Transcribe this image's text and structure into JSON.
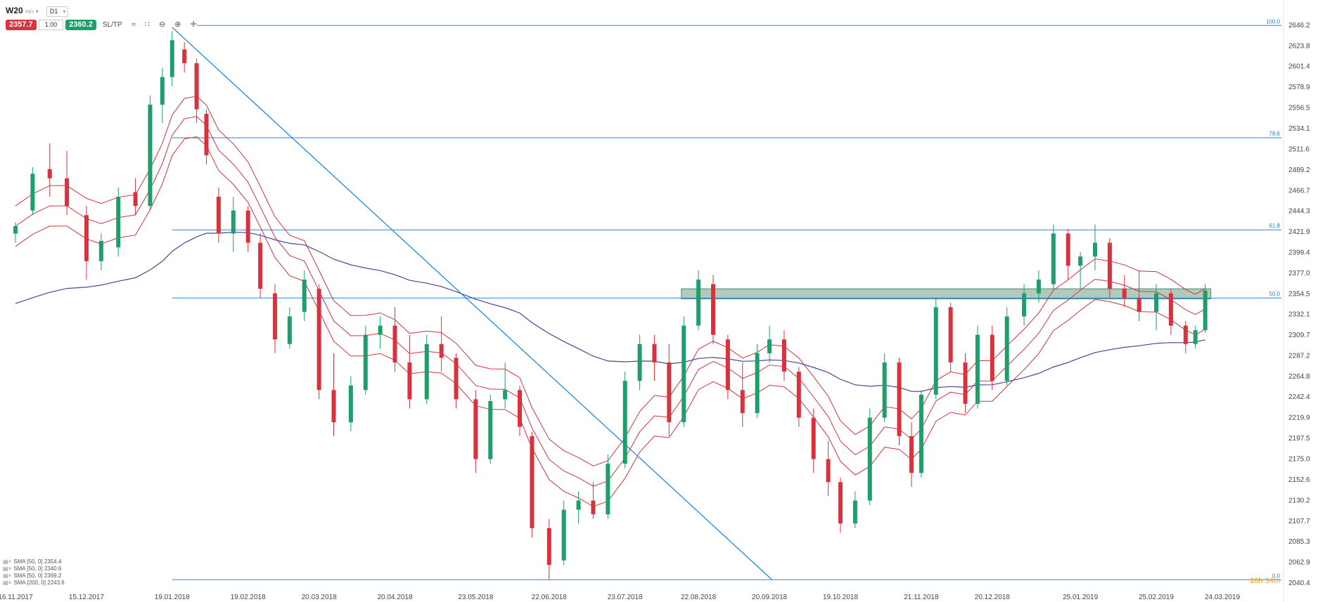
{
  "toolbar": {
    "symbol": "W20",
    "symbol_sub": "IND",
    "timeframe": "D1",
    "sell_price": "2357.7",
    "volume": "1.00",
    "buy_price": "2360.2",
    "sltp_label": "SL/TP"
  },
  "indicators": [
    {
      "label": "SMA [50, 0] 2354.4"
    },
    {
      "label": "SMA [50, 0] 2340.6"
    },
    {
      "label": "SMA [50, 0] 2369.2"
    },
    {
      "label": "SMA [200, 0] 2243.6"
    }
  ],
  "timer": "10h 34m",
  "colors": {
    "up": "#1d9e6a",
    "down": "#d8323f",
    "sma_envelope": "#d0343a",
    "sma200": "#4b4592",
    "level": "#1e88e5",
    "zone": "#4f8a6e"
  },
  "chart_data": {
    "type": "candlestick",
    "instrument": "W20",
    "timeframe": "D1",
    "ylim": [
      2040.4,
      2646.2
    ],
    "y_ticks": [
      "2646.2",
      "2623.8",
      "2601.4",
      "2578.9",
      "2556.5",
      "2534.1",
      "2511.6",
      "2489.2",
      "2466.7",
      "2444.3",
      "2421.9",
      "2399.4",
      "2377.0",
      "2354.5",
      "2332.1",
      "2309.7",
      "2287.2",
      "2264.8",
      "2242.4",
      "2219.9",
      "2197.5",
      "2175.0",
      "2152.6",
      "2130.2",
      "2107.7",
      "2085.3",
      "2062.9",
      "2040.4"
    ],
    "x_ticks": [
      "16.11.2017",
      "15.12.2017",
      "19.01.2018",
      "19.02.2018",
      "20.03.2018",
      "20.04.2018",
      "23.05.2018",
      "22.06.2018",
      "23.07.2018",
      "22.08.2018",
      "20.09.2018",
      "19.10.2018",
      "21.11.2018",
      "20.12.2018",
      "25.01.2019",
      "25.02.2019",
      "24.03.2019"
    ],
    "fib_levels": [
      {
        "label": "100.0",
        "value": 2646.0
      },
      {
        "label": "78.6",
        "value": 2524.0
      },
      {
        "label": "61.8",
        "value": 2424.0
      },
      {
        "label": "50.0",
        "value": 2350.0
      },
      {
        "label": "0.0",
        "value": 2044.0
      }
    ],
    "zone": {
      "from_date": "15.08.2018",
      "to_date": "end",
      "low": 2349.0,
      "high": 2360.0
    },
    "trendline": {
      "from": {
        "date": "19.01.2018",
        "value": 2644.0
      },
      "to": {
        "date": "21.09.2018",
        "value": 2044.0
      }
    },
    "sma": [
      {
        "label": "SMA [50, 0] 2354.4",
        "last": 2354.4
      },
      {
        "label": "SMA [50, 0] 2340.6",
        "last": 2340.6
      },
      {
        "label": "SMA [50, 0] 2369.2",
        "last": 2369.2
      },
      {
        "label": "SMA [200, 0] 2243.6",
        "last": 2243.6
      }
    ],
    "candles": [
      {
        "date": "16.11.2017",
        "open": 2420,
        "high": 2432,
        "low": 2410,
        "close": 2428
      },
      {
        "date": "23.11.2017",
        "open": 2445,
        "high": 2492,
        "low": 2440,
        "close": 2485
      },
      {
        "date": "30.11.2017",
        "open": 2490,
        "high": 2518,
        "low": 2460,
        "close": 2480
      },
      {
        "date": "07.12.2017",
        "open": 2480,
        "high": 2510,
        "low": 2440,
        "close": 2450
      },
      {
        "date": "15.12.2017",
        "open": 2440,
        "high": 2450,
        "low": 2370,
        "close": 2390
      },
      {
        "date": "21.12.2017",
        "open": 2390,
        "high": 2420,
        "low": 2380,
        "close": 2412
      },
      {
        "date": "28.12.2017",
        "open": 2405,
        "high": 2470,
        "low": 2395,
        "close": 2460
      },
      {
        "date": "04.01.2018",
        "open": 2465,
        "high": 2480,
        "low": 2440,
        "close": 2450
      },
      {
        "date": "10.01.2018",
        "open": 2450,
        "high": 2570,
        "low": 2445,
        "close": 2560
      },
      {
        "date": "15.01.2018",
        "open": 2560,
        "high": 2600,
        "low": 2540,
        "close": 2590
      },
      {
        "date": "19.01.2018",
        "open": 2590,
        "high": 2640,
        "low": 2580,
        "close": 2630
      },
      {
        "date": "24.01.2018",
        "open": 2620,
        "high": 2628,
        "low": 2595,
        "close": 2605
      },
      {
        "date": "29.01.2018",
        "open": 2605,
        "high": 2610,
        "low": 2540,
        "close": 2555
      },
      {
        "date": "02.02.2018",
        "open": 2550,
        "high": 2555,
        "low": 2495,
        "close": 2505
      },
      {
        "date": "07.02.2018",
        "open": 2460,
        "high": 2470,
        "low": 2410,
        "close": 2420
      },
      {
        "date": "13.02.2018",
        "open": 2420,
        "high": 2460,
        "low": 2400,
        "close": 2445
      },
      {
        "date": "19.02.2018",
        "open": 2445,
        "high": 2450,
        "low": 2400,
        "close": 2410
      },
      {
        "date": "24.02.2018",
        "open": 2410,
        "high": 2420,
        "low": 2350,
        "close": 2360
      },
      {
        "date": "02.03.2018",
        "open": 2355,
        "high": 2365,
        "low": 2290,
        "close": 2305
      },
      {
        "date": "08.03.2018",
        "open": 2300,
        "high": 2340,
        "low": 2295,
        "close": 2330
      },
      {
        "date": "14.03.2018",
        "open": 2335,
        "high": 2380,
        "low": 2325,
        "close": 2370
      },
      {
        "date": "20.03.2018",
        "open": 2360,
        "high": 2365,
        "low": 2240,
        "close": 2250
      },
      {
        "date": "26.03.2018",
        "open": 2250,
        "high": 2290,
        "low": 2200,
        "close": 2215
      },
      {
        "date": "02.04.2018",
        "open": 2215,
        "high": 2265,
        "low": 2205,
        "close": 2255
      },
      {
        "date": "08.04.2018",
        "open": 2250,
        "high": 2320,
        "low": 2245,
        "close": 2310
      },
      {
        "date": "14.04.2018",
        "open": 2310,
        "high": 2330,
        "low": 2295,
        "close": 2320
      },
      {
        "date": "20.04.2018",
        "open": 2320,
        "high": 2340,
        "low": 2270,
        "close": 2280
      },
      {
        "date": "26.04.2018",
        "open": 2280,
        "high": 2310,
        "low": 2230,
        "close": 2240
      },
      {
        "date": "03.05.2018",
        "open": 2240,
        "high": 2310,
        "low": 2235,
        "close": 2300
      },
      {
        "date": "09.05.2018",
        "open": 2300,
        "high": 2330,
        "low": 2270,
        "close": 2285
      },
      {
        "date": "15.05.2018",
        "open": 2285,
        "high": 2290,
        "low": 2230,
        "close": 2240
      },
      {
        "date": "23.05.2018",
        "open": 2240,
        "high": 2250,
        "low": 2160,
        "close": 2175
      },
      {
        "date": "29.05.2018",
        "open": 2175,
        "high": 2245,
        "low": 2170,
        "close": 2238
      },
      {
        "date": "04.06.2018",
        "open": 2240,
        "high": 2280,
        "low": 2230,
        "close": 2250
      },
      {
        "date": "10.06.2018",
        "open": 2250,
        "high": 2255,
        "low": 2200,
        "close": 2210
      },
      {
        "date": "15.06.2018",
        "open": 2200,
        "high": 2205,
        "low": 2090,
        "close": 2100
      },
      {
        "date": "22.06.2018",
        "open": 2100,
        "high": 2110,
        "low": 2044,
        "close": 2060
      },
      {
        "date": "28.06.2018",
        "open": 2065,
        "high": 2130,
        "low": 2060,
        "close": 2120
      },
      {
        "date": "04.07.2018",
        "open": 2120,
        "high": 2140,
        "low": 2105,
        "close": 2130
      },
      {
        "date": "10.07.2018",
        "open": 2130,
        "high": 2150,
        "low": 2110,
        "close": 2115
      },
      {
        "date": "16.07.2018",
        "open": 2115,
        "high": 2180,
        "low": 2110,
        "close": 2170
      },
      {
        "date": "23.07.2018",
        "open": 2170,
        "high": 2270,
        "low": 2165,
        "close": 2260
      },
      {
        "date": "29.07.2018",
        "open": 2260,
        "high": 2310,
        "low": 2250,
        "close": 2300
      },
      {
        "date": "04.08.2018",
        "open": 2300,
        "high": 2310,
        "low": 2260,
        "close": 2280
      },
      {
        "date": "10.08.2018",
        "open": 2280,
        "high": 2300,
        "low": 2200,
        "close": 2215
      },
      {
        "date": "16.08.2018",
        "open": 2215,
        "high": 2330,
        "low": 2210,
        "close": 2320
      },
      {
        "date": "22.08.2018",
        "open": 2320,
        "high": 2380,
        "low": 2315,
        "close": 2370
      },
      {
        "date": "28.08.2018",
        "open": 2365,
        "high": 2375,
        "low": 2300,
        "close": 2310
      },
      {
        "date": "03.09.2018",
        "open": 2305,
        "high": 2310,
        "low": 2240,
        "close": 2250
      },
      {
        "date": "09.09.2018",
        "open": 2250,
        "high": 2280,
        "low": 2210,
        "close": 2225
      },
      {
        "date": "15.09.2018",
        "open": 2225,
        "high": 2300,
        "low": 2220,
        "close": 2290
      },
      {
        "date": "20.09.2018",
        "open": 2290,
        "high": 2320,
        "low": 2280,
        "close": 2305
      },
      {
        "date": "26.09.2018",
        "open": 2305,
        "high": 2315,
        "low": 2260,
        "close": 2270
      },
      {
        "date": "02.10.2018",
        "open": 2270,
        "high": 2275,
        "low": 2210,
        "close": 2220
      },
      {
        "date": "08.10.2018",
        "open": 2220,
        "high": 2230,
        "low": 2160,
        "close": 2175
      },
      {
        "date": "14.10.2018",
        "open": 2175,
        "high": 2195,
        "low": 2135,
        "close": 2150
      },
      {
        "date": "19.10.2018",
        "open": 2150,
        "high": 2155,
        "low": 2095,
        "close": 2105
      },
      {
        "date": "25.10.2018",
        "open": 2105,
        "high": 2140,
        "low": 2100,
        "close": 2130
      },
      {
        "date": "31.10.2018",
        "open": 2130,
        "high": 2230,
        "low": 2125,
        "close": 2220
      },
      {
        "date": "06.11.2018",
        "open": 2220,
        "high": 2290,
        "low": 2215,
        "close": 2280
      },
      {
        "date": "12.11.2018",
        "open": 2280,
        "high": 2285,
        "low": 2190,
        "close": 2200
      },
      {
        "date": "17.11.2018",
        "open": 2200,
        "high": 2215,
        "low": 2145,
        "close": 2160
      },
      {
        "date": "21.11.2018",
        "open": 2160,
        "high": 2250,
        "low": 2155,
        "close": 2245
      },
      {
        "date": "27.11.2018",
        "open": 2245,
        "high": 2350,
        "low": 2240,
        "close": 2340
      },
      {
        "date": "03.12.2018",
        "open": 2340,
        "high": 2345,
        "low": 2270,
        "close": 2280
      },
      {
        "date": "09.12.2018",
        "open": 2280,
        "high": 2290,
        "low": 2225,
        "close": 2235
      },
      {
        "date": "14.12.2018",
        "open": 2235,
        "high": 2320,
        "low": 2230,
        "close": 2310
      },
      {
        "date": "20.12.2018",
        "open": 2310,
        "high": 2320,
        "low": 2250,
        "close": 2260
      },
      {
        "date": "26.12.2018",
        "open": 2260,
        "high": 2340,
        "low": 2255,
        "close": 2330
      },
      {
        "date": "02.01.2019",
        "open": 2330,
        "high": 2365,
        "low": 2320,
        "close": 2355
      },
      {
        "date": "08.01.2019",
        "open": 2355,
        "high": 2380,
        "low": 2345,
        "close": 2370
      },
      {
        "date": "14.01.2019",
        "open": 2365,
        "high": 2430,
        "low": 2360,
        "close": 2420
      },
      {
        "date": "20.01.2019",
        "open": 2420,
        "high": 2425,
        "low": 2370,
        "close": 2385
      },
      {
        "date": "25.01.2019",
        "open": 2385,
        "high": 2400,
        "low": 2360,
        "close": 2395
      },
      {
        "date": "31.01.2019",
        "open": 2395,
        "high": 2430,
        "low": 2380,
        "close": 2410
      },
      {
        "date": "06.02.2019",
        "open": 2410,
        "high": 2415,
        "low": 2350,
        "close": 2360
      },
      {
        "date": "12.02.2019",
        "open": 2360,
        "high": 2375,
        "low": 2340,
        "close": 2350
      },
      {
        "date": "18.02.2019",
        "open": 2350,
        "high": 2380,
        "low": 2325,
        "close": 2335
      },
      {
        "date": "25.02.2019",
        "open": 2335,
        "high": 2365,
        "low": 2315,
        "close": 2355
      },
      {
        "date": "03.03.2019",
        "open": 2355,
        "high": 2360,
        "low": 2310,
        "close": 2320
      },
      {
        "date": "09.03.2019",
        "open": 2320,
        "high": 2325,
        "low": 2290,
        "close": 2300
      },
      {
        "date": "13.03.2019",
        "open": 2300,
        "high": 2320,
        "low": 2295,
        "close": 2315
      },
      {
        "date": "17.03.2019",
        "open": 2315,
        "high": 2365,
        "low": 2312,
        "close": 2358
      }
    ]
  }
}
